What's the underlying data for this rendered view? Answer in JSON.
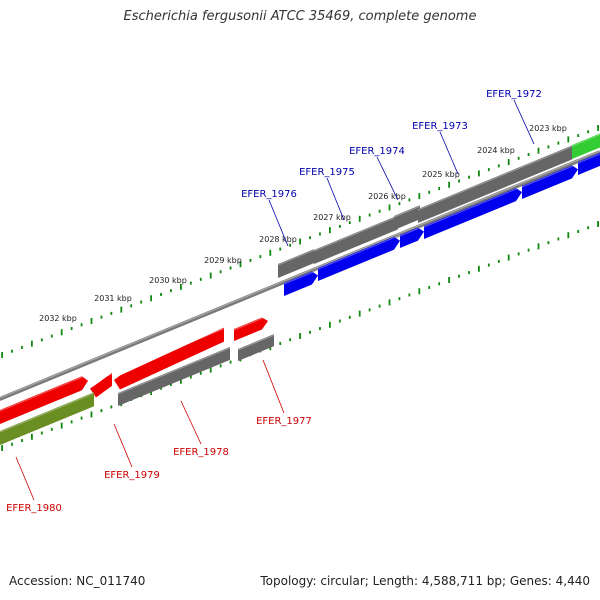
{
  "title": "Escherichia fergusonii ATCC 35469, complete genome",
  "footer": {
    "accession": "Accession: NC_011740",
    "summary": "Topology: circular; Length: 4,588,711 bp; Genes: 4,440"
  },
  "colors": {
    "forward_label": "#0000aa",
    "reverse_label": "#cc0000",
    "backbone": "#808080",
    "tick": "#118811",
    "gray_feature": "#666666",
    "blue_feature": "#0000ee",
    "red_feature": "#ee0000",
    "green_feature": "#33cc33",
    "olive_feature": "#6b8e23"
  },
  "ticks": [
    "2023 kbp",
    "2024 kbp",
    "2025 kbp",
    "2026 kbp",
    "2027 kbp",
    "2028 kbp",
    "2029 kbp",
    "2030 kbp",
    "2031 kbp",
    "2032 kbp"
  ],
  "genes_top": [
    "EFER_1972",
    "EFER_1973",
    "EFER_1974",
    "EFER_1975",
    "EFER_1976"
  ],
  "genes_bottom": [
    "EFER_1977",
    "EFER_1978",
    "EFER_1979",
    "EFER_1980"
  ]
}
